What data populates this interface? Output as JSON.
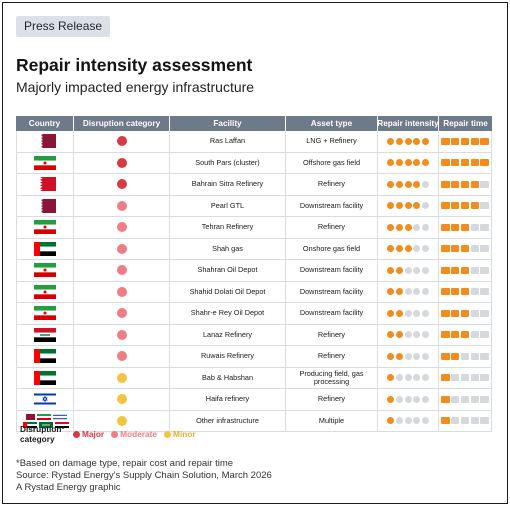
{
  "tag": "Press Release",
  "title": "Repair intensity assessment",
  "subtitle": "Majorly impacted energy infrastructure",
  "columns": [
    "Country",
    "Disruption category",
    "Facility",
    "Asset type",
    "Repair intensity",
    "Repair time"
  ],
  "colors": {
    "major": "#d63a45",
    "moderate": "#f07c84",
    "minor": "#f3c440",
    "filled": "#f28c1c",
    "empty": "#d5d9de",
    "header": "#6c7a8a"
  },
  "flag_names": {
    "qatar": "Qatar flag",
    "iran": "Iran flag",
    "bahrain": "Bahrain flag",
    "uae": "UAE flag",
    "iraq": "Iraq flag",
    "israel": "Israel flag",
    "multi": "Multiple country flags"
  },
  "rows": [
    {
      "flag": "qatar",
      "category": "major",
      "facility": "Ras Laffan",
      "asset": "LNG + Refinery",
      "intensity": 5,
      "time": 5
    },
    {
      "flag": "iran",
      "category": "major",
      "facility": "South Pars (cluster)",
      "asset": "Offshore gas field",
      "intensity": 5,
      "time": 5
    },
    {
      "flag": "bahrain",
      "category": "major",
      "facility": "Bahrain Sitra Refinery",
      "asset": "Refinery",
      "intensity": 4,
      "time": 4
    },
    {
      "flag": "qatar",
      "category": "moderate",
      "facility": "Pearl GTL",
      "asset": "Downstream facility",
      "intensity": 4,
      "time": 4
    },
    {
      "flag": "iran",
      "category": "moderate",
      "facility": "Tehran Refinery",
      "asset": "Refinery",
      "intensity": 3,
      "time": 3
    },
    {
      "flag": "uae",
      "category": "moderate",
      "facility": "Shah gas",
      "asset": "Onshore gas field",
      "intensity": 3,
      "time": 3
    },
    {
      "flag": "iran",
      "category": "moderate",
      "facility": "Shahran Oil Depot",
      "asset": "Downstream facility",
      "intensity": 2,
      "time": 3
    },
    {
      "flag": "iran",
      "category": "moderate",
      "facility": "Shahid Dolati Oil Depot",
      "asset": "Downstream facility",
      "intensity": 2,
      "time": 3
    },
    {
      "flag": "iran",
      "category": "moderate",
      "facility": "Shahr-e Rey Oil Depot",
      "asset": "Downstream facility",
      "intensity": 2,
      "time": 3
    },
    {
      "flag": "iraq",
      "category": "moderate",
      "facility": "Lanaz Refinery",
      "asset": "Refinery",
      "intensity": 2,
      "time": 3
    },
    {
      "flag": "uae",
      "category": "moderate",
      "facility": "Ruwais Refinery",
      "asset": "Refinery",
      "intensity": 2,
      "time": 2
    },
    {
      "flag": "uae",
      "category": "minor",
      "facility": "Bab & Habshan",
      "asset": "Producing field, gas processing",
      "intensity": 1,
      "time": 1
    },
    {
      "flag": "israel",
      "category": "minor",
      "facility": "Haifa refinery",
      "asset": "Refinery",
      "intensity": 1,
      "time": 1
    },
    {
      "flag": "multi",
      "category": "minor",
      "facility": "Other infrastructure",
      "asset": "Multiple",
      "intensity": 1,
      "time": 1
    }
  ],
  "legend": {
    "label": "Disruption* category",
    "major": "Major",
    "moderate": "Moderate",
    "minor": "Minor"
  },
  "footer": {
    "note": "*Based on damage type, repair cost and repair time",
    "source": "Source: Rystad Energy's Supply Chain Solution, March 2026",
    "credit": "A Rystad Energy graphic"
  }
}
